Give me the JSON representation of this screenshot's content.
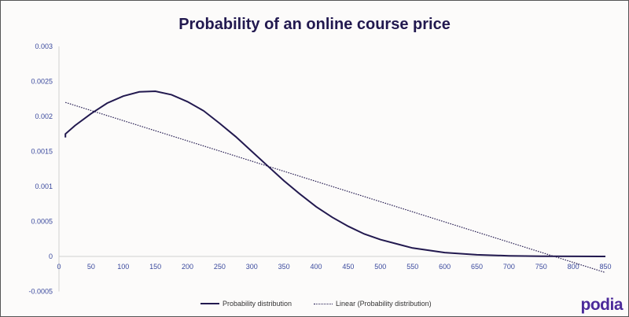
{
  "chart_data": {
    "type": "line",
    "title": "Probability of an online course price",
    "xlabel": "",
    "ylabel": "",
    "xlim": [
      0,
      850
    ],
    "ylim": [
      -0.0005,
      0.003
    ],
    "x_ticks": [
      "0",
      "50",
      "100",
      "150",
      "200",
      "250",
      "300",
      "350",
      "400",
      "450",
      "500",
      "550",
      "600",
      "650",
      "700",
      "750",
      "800",
      "850"
    ],
    "y_ticks": [
      "-0.0005",
      "0",
      "0.0005",
      "0.001",
      "0.0015",
      "0.002",
      "0.0025",
      "0.003"
    ],
    "grid": false,
    "legend_placement": "bottom",
    "series": [
      {
        "name": "Probability distribution",
        "style": "solid",
        "color": "#22194f",
        "x": [
          10,
          10,
          25,
          50,
          75,
          100,
          125,
          150,
          175,
          200,
          225,
          250,
          275,
          300,
          325,
          350,
          375,
          400,
          425,
          450,
          475,
          500,
          550,
          600,
          650,
          700,
          750,
          800,
          850
        ],
        "y": [
          0.0017,
          0.00175,
          0.00187,
          0.00204,
          0.00219,
          0.00229,
          0.00235,
          0.00236,
          0.00231,
          0.00221,
          0.00208,
          0.0019,
          0.00171,
          0.0015,
          0.00129,
          0.00108,
          0.00089,
          0.00071,
          0.00056,
          0.00043,
          0.00032,
          0.00024,
          0.00012,
          5.5e-05,
          2.4e-05,
          9e-06,
          3e-06,
          1e-06,
          0
        ]
      },
      {
        "name": "Linear (Probability distribution)",
        "style": "dotted",
        "color": "#22194f",
        "x": [
          10,
          850
        ],
        "y": [
          0.0022,
          -0.00023
        ]
      }
    ]
  },
  "brand": {
    "logo_text": "podia",
    "color": "#4b2a9a"
  }
}
